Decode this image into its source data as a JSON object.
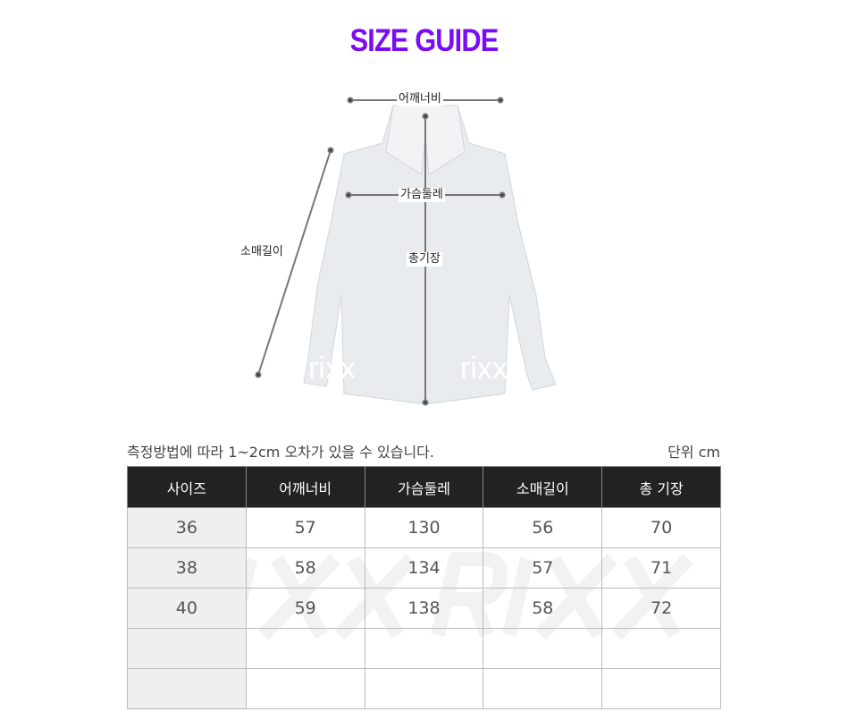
{
  "title": "SIZE GUIDE",
  "labels": {
    "shoulder": "어깨너비",
    "chest": "가슴둘레",
    "sleeve": "소매길이",
    "length": "총기장"
  },
  "watermark": "rixx",
  "table_watermark": "RIXXRIXX",
  "note": "측정방법에 따라 1~2cm 오차가 있을 수 있습니다.",
  "unit": "단위 cm",
  "table": {
    "headers": [
      "사이즈",
      "어깨너비",
      "가슴둘레",
      "소매길이",
      "총 기장"
    ],
    "rows": [
      [
        "36",
        "57",
        "130",
        "56",
        "70"
      ],
      [
        "38",
        "58",
        "134",
        "57",
        "71"
      ],
      [
        "40",
        "59",
        "138",
        "58",
        "72"
      ],
      [
        "",
        "",
        "",
        "",
        ""
      ],
      [
        "",
        "",
        "",
        "",
        ""
      ]
    ]
  },
  "colors": {
    "title": "#7a0cf5",
    "header_bg": "#222222"
  }
}
